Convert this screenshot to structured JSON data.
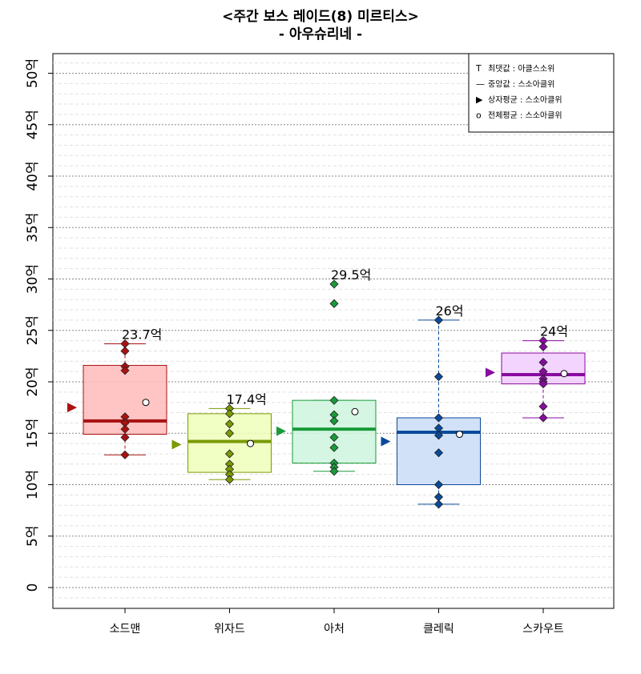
{
  "title": "<주간 보스 레이드(8) 미르티스>",
  "subtitle": "- 아우슈리네 -",
  "chart_data": {
    "type": "box",
    "ylim": [
      0,
      50
    ],
    "y_tick_values": [
      0,
      5,
      10,
      15,
      20,
      25,
      30,
      35,
      40,
      45,
      50
    ],
    "y_tick_labels": [
      "0",
      "5억",
      "10억",
      "15억",
      "20억",
      "25억",
      "30억",
      "35억",
      "40억",
      "45억",
      "50억"
    ],
    "grid": true,
    "legend_position": "top-right",
    "legend": [
      {
        "symbol": "T",
        "text": "최댓값   : 아클스소위"
      },
      {
        "symbol": "—",
        "text": "중앙값   : 스소아클위"
      },
      {
        "symbol": "▶",
        "text": "상자평균 : 스소아클위"
      },
      {
        "symbol": "o",
        "text": "전체평균 : 스소아클위"
      }
    ],
    "categories": [
      "소드맨",
      "위자드",
      "아처",
      "클레릭",
      "스카우트"
    ],
    "series": [
      {
        "category": "소드맨",
        "color": "#aa1111",
        "fill": "#ffbbbb",
        "q1": 14.9,
        "median": 16.2,
        "q3": 21.6,
        "whisker_low": 12.9,
        "whisker_high": 23.7,
        "box_mean": 17.5,
        "overall_mean": 18.0,
        "max_label": "23.7억",
        "points": [
          23.7,
          23.0,
          21.5,
          21.1,
          16.6,
          16.0,
          15.4,
          14.6,
          12.9
        ]
      },
      {
        "category": "위자드",
        "color": "#7a9a00",
        "fill": "#eeffbb",
        "q1": 11.2,
        "median": 14.2,
        "q3": 16.9,
        "whisker_low": 10.5,
        "whisker_high": 17.4,
        "box_mean": 13.9,
        "overall_mean": 14.0,
        "max_label": "17.4억",
        "points": [
          17.4,
          16.9,
          15.9,
          15.0,
          13.0,
          12.0,
          11.5,
          11.0,
          10.5
        ]
      },
      {
        "category": "아처",
        "color": "#1a9a3a",
        "fill": "#ccf5dd",
        "q1": 12.1,
        "median": 15.4,
        "q3": 18.2,
        "whisker_low": 11.3,
        "whisker_high": 18.2,
        "box_mean": 15.2,
        "overall_mean": 17.1,
        "max_label": "29.5억",
        "points": [
          29.5,
          27.6,
          18.2,
          16.8,
          16.2,
          14.6,
          13.6,
          12.1,
          11.7,
          11.3
        ]
      },
      {
        "category": "클레릭",
        "color": "#0a4a9a",
        "fill": "#c9dcf7",
        "q1": 10.0,
        "median": 15.1,
        "q3": 16.5,
        "whisker_low": 8.1,
        "whisker_high": 26.0,
        "box_mean": 14.2,
        "overall_mean": 14.9,
        "max_label": "26억",
        "points": [
          26.0,
          20.5,
          16.5,
          15.5,
          14.8,
          13.1,
          10.0,
          8.8,
          8.1
        ]
      },
      {
        "category": "스카우트",
        "color": "#8a0aa0",
        "fill": "#f1ccff",
        "q1": 19.8,
        "median": 20.7,
        "q3": 22.8,
        "whisker_low": 16.5,
        "whisker_high": 24.0,
        "box_mean": 20.9,
        "overall_mean": 20.8,
        "max_label": "24억",
        "points": [
          24.0,
          23.4,
          21.9,
          21.0,
          20.3,
          20.0,
          19.8,
          17.6,
          16.5
        ]
      }
    ]
  }
}
